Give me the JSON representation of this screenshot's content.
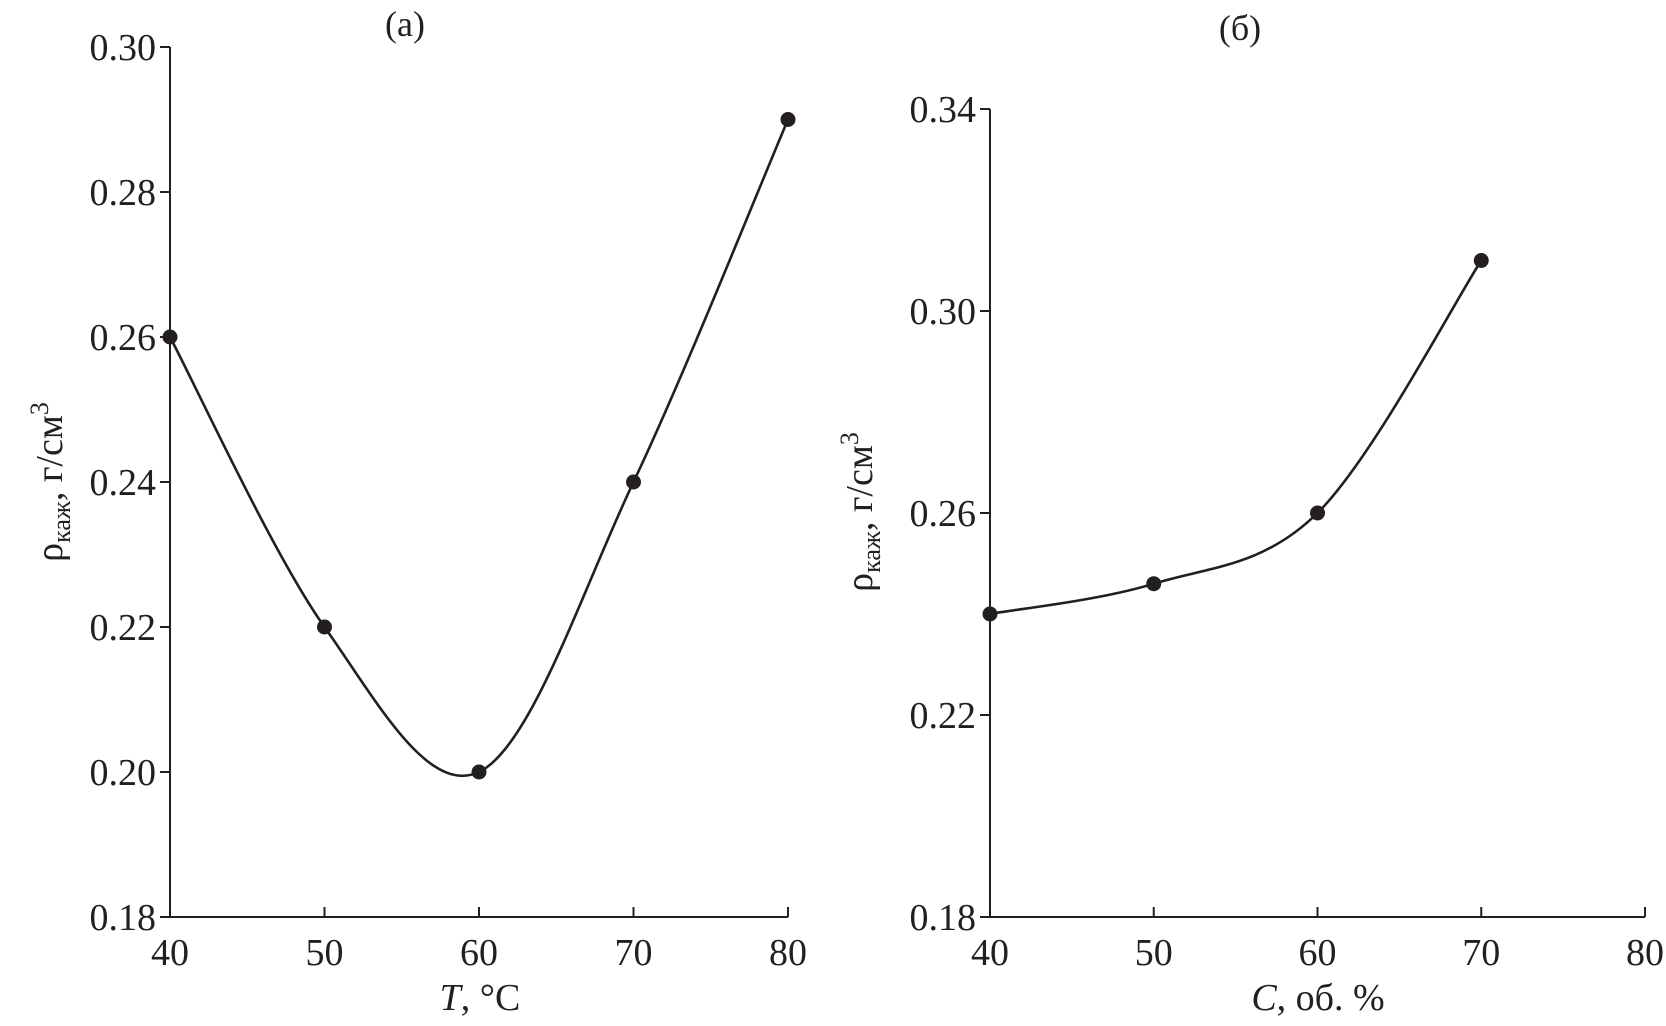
{
  "chart_data": [
    {
      "type": "line",
      "title": "(а)",
      "xlabel_italic": "T",
      "xlabel_rest": ", °C",
      "ylabel_main": "ρ",
      "ylabel_sub": "каж",
      "ylabel_unit": ", г/см",
      "ylabel_sup": "3",
      "xlim": [
        40,
        80
      ],
      "ylim": [
        0.18,
        0.3
      ],
      "xticks": [
        "40",
        "50",
        "60",
        "70",
        "80"
      ],
      "xtick_values": [
        40,
        50,
        60,
        70,
        80
      ],
      "yticks": [
        "0.18",
        "0.20",
        "0.22",
        "0.24",
        "0.26",
        "0.28",
        "0.30"
      ],
      "ytick_values": [
        0.18,
        0.2,
        0.22,
        0.24,
        0.26,
        0.28,
        0.3
      ],
      "x": [
        40,
        50,
        60,
        70,
        80
      ],
      "y": [
        0.26,
        0.22,
        0.2,
        0.24,
        0.29
      ],
      "grid": false,
      "color": "#231f20"
    },
    {
      "type": "line",
      "title": "(б)",
      "xlabel_italic": "C",
      "xlabel_rest": ", об. %",
      "ylabel_main": "ρ",
      "ylabel_sub": "каж",
      "ylabel_unit": ", г/см",
      "ylabel_sup": "3",
      "xlim": [
        40,
        80
      ],
      "ylim": [
        0.18,
        0.34
      ],
      "xticks": [
        "40",
        "50",
        "60",
        "70",
        "80"
      ],
      "xtick_values": [
        40,
        50,
        60,
        70,
        80
      ],
      "yticks": [
        "0.18",
        "0.22",
        "0.26",
        "0.30",
        "0.34"
      ],
      "ytick_values": [
        0.18,
        0.22,
        0.26,
        0.3,
        0.34
      ],
      "x": [
        40,
        50,
        60,
        70
      ],
      "y": [
        0.24,
        0.246,
        0.26,
        0.31
      ],
      "grid": false,
      "color": "#231f20"
    }
  ]
}
